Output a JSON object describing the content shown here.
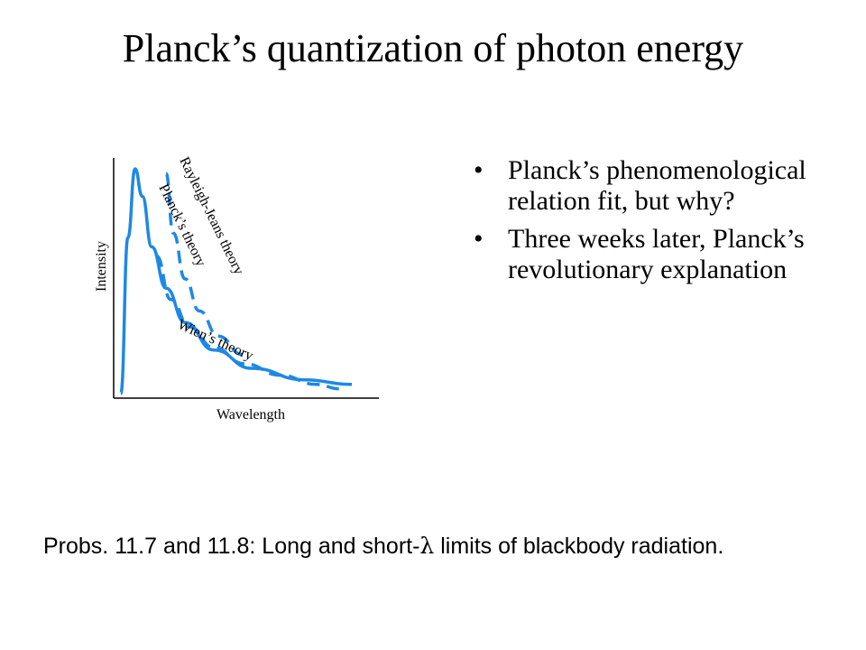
{
  "slide": {
    "title": "Planck’s quantization of photon energy"
  },
  "bullets": [
    {
      "text": "Planck’s phenomenological relation  fit, but why?"
    },
    {
      "text": "Three weeks later, Planck’s revolutionary explanation"
    }
  ],
  "bullet_symbol": "•",
  "footnote": {
    "before": "Probs. 11.7 and 11.8:  Long and short-",
    "lambda": "λ",
    "after": "  limits of blackbody radiation."
  },
  "figure": {
    "ylabel": "Intensity",
    "xlabel": "Wavelength",
    "curve_labels": {
      "rayleigh_jeans": "Rayleigh-Jeans theory",
      "planck": "Planck’s theory",
      "wien": "Wien’s theory"
    },
    "colors": {
      "curve": "#1e88e5",
      "axes": "#000000"
    }
  },
  "chart_data": {
    "type": "line",
    "title": "",
    "xlabel": "Wavelength",
    "ylabel": "Intensity",
    "grid": false,
    "legend": "none",
    "series": [
      {
        "name": "Planck’s theory",
        "style": "solid",
        "x": [
          0.03,
          0.06,
          0.09,
          0.12,
          0.16,
          0.22,
          0.3,
          0.42,
          0.58,
          0.8,
          1.0
        ],
        "y": [
          0.02,
          0.7,
          1.0,
          0.88,
          0.66,
          0.48,
          0.33,
          0.21,
          0.13,
          0.08,
          0.06
        ]
      },
      {
        "name": "Rayleigh-Jeans theory",
        "style": "dashed",
        "x": [
          0.22,
          0.25,
          0.3,
          0.36,
          0.44,
          0.54
        ],
        "y": [
          0.98,
          0.72,
          0.52,
          0.38,
          0.27,
          0.19
        ]
      },
      {
        "name": "Wien’s theory",
        "style": "dashed",
        "x": [
          0.18,
          0.24,
          0.32,
          0.42,
          0.55,
          0.7,
          0.85,
          0.95
        ],
        "y": [
          0.62,
          0.43,
          0.31,
          0.22,
          0.15,
          0.1,
          0.06,
          0.04
        ]
      }
    ]
  }
}
